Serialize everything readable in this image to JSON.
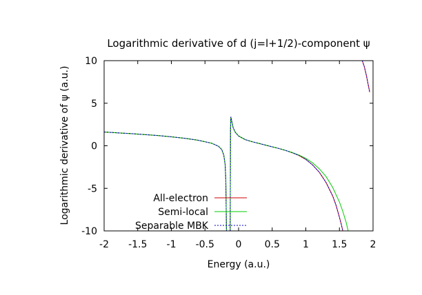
{
  "chart_data": {
    "type": "line",
    "title": "Logarithmic derivative of d (j=l+1/2)-component ψ",
    "xlabel": "Energy (a.u.)",
    "ylabel": "Logarithmic derivative of ψ (a.u.)",
    "xlim": [
      -2,
      2
    ],
    "ylim": [
      -10,
      10
    ],
    "xticks": [
      -2,
      -1.5,
      -1,
      -0.5,
      0,
      0.5,
      1,
      1.5,
      2
    ],
    "yticks": [
      -10,
      -5,
      0,
      5,
      10
    ],
    "xtick_labels": [
      "-2",
      "-1.5",
      "-1",
      "-0.5",
      "0",
      "0.5",
      "1",
      "1.5",
      "2"
    ],
    "ytick_labels": [
      "-10",
      "-5",
      "0",
      "5",
      "10"
    ],
    "grid": false,
    "legend_position": "bottom-left",
    "series": [
      {
        "name": "All-electron",
        "color": "#cc0000",
        "dash": "solid",
        "segments": [
          [
            [
              -2.0,
              1.62
            ],
            [
              -1.8,
              1.52
            ],
            [
              -1.6,
              1.43
            ],
            [
              -1.4,
              1.32
            ],
            [
              -1.2,
              1.2
            ],
            [
              -1.0,
              1.05
            ],
            [
              -0.8,
              0.88
            ],
            [
              -0.6,
              0.65
            ],
            [
              -0.4,
              0.3
            ],
            [
              -0.3,
              -0.05
            ],
            [
              -0.25,
              -0.45
            ],
            [
              -0.22,
              -1.1
            ],
            [
              -0.2,
              -2.2
            ],
            [
              -0.19,
              -4.0
            ],
            [
              -0.18,
              -10.0
            ]
          ],
          [
            [
              -0.125,
              -10.0
            ],
            [
              -0.12,
              2.0
            ],
            [
              -0.115,
              3.4
            ],
            [
              -0.1,
              2.8
            ],
            [
              -0.08,
              2.1
            ],
            [
              -0.05,
              1.6
            ],
            [
              0.0,
              1.15
            ],
            [
              0.1,
              0.72
            ],
            [
              0.2,
              0.48
            ],
            [
              0.3,
              0.28
            ],
            [
              0.4,
              0.08
            ],
            [
              0.5,
              -0.12
            ],
            [
              0.6,
              -0.32
            ],
            [
              0.7,
              -0.55
            ],
            [
              0.8,
              -0.82
            ],
            [
              0.9,
              -1.15
            ],
            [
              1.0,
              -1.6
            ],
            [
              1.1,
              -2.25
            ],
            [
              1.2,
              -3.1
            ],
            [
              1.3,
              -4.3
            ],
            [
              1.4,
              -5.9
            ],
            [
              1.45,
              -7.0
            ],
            [
              1.5,
              -8.4
            ],
            [
              1.53,
              -9.3
            ],
            [
              1.55,
              -10.0
            ]
          ],
          [
            [
              1.84,
              10.0
            ],
            [
              1.87,
              9.3
            ],
            [
              1.9,
              8.3
            ],
            [
              1.95,
              6.3
            ]
          ]
        ]
      },
      {
        "name": "Semi-local",
        "color": "#00cc00",
        "dash": "solid",
        "segments": [
          [
            [
              -2.0,
              1.62
            ],
            [
              -1.8,
              1.52
            ],
            [
              -1.6,
              1.43
            ],
            [
              -1.4,
              1.32
            ],
            [
              -1.2,
              1.2
            ],
            [
              -1.0,
              1.05
            ],
            [
              -0.8,
              0.88
            ],
            [
              -0.6,
              0.65
            ],
            [
              -0.4,
              0.3
            ],
            [
              -0.3,
              -0.05
            ],
            [
              -0.25,
              -0.45
            ],
            [
              -0.22,
              -1.1
            ],
            [
              -0.2,
              -2.2
            ],
            [
              -0.19,
              -4.0
            ],
            [
              -0.18,
              -10.0
            ]
          ],
          [
            [
              -0.125,
              -10.0
            ],
            [
              -0.12,
              2.0
            ],
            [
              -0.115,
              3.4
            ],
            [
              -0.1,
              2.8
            ],
            [
              -0.08,
              2.1
            ],
            [
              -0.05,
              1.6
            ],
            [
              0.0,
              1.15
            ],
            [
              0.1,
              0.72
            ],
            [
              0.2,
              0.48
            ],
            [
              0.3,
              0.28
            ],
            [
              0.4,
              0.08
            ],
            [
              0.5,
              -0.12
            ],
            [
              0.6,
              -0.32
            ],
            [
              0.7,
              -0.55
            ],
            [
              0.8,
              -0.8
            ],
            [
              0.9,
              -1.1
            ],
            [
              1.0,
              -1.48
            ],
            [
              1.1,
              -2.0
            ],
            [
              1.2,
              -2.7
            ],
            [
              1.3,
              -3.6
            ],
            [
              1.4,
              -4.9
            ],
            [
              1.5,
              -6.6
            ],
            [
              1.55,
              -7.7
            ],
            [
              1.6,
              -9.0
            ],
            [
              1.63,
              -10.0
            ]
          ]
        ]
      },
      {
        "name": "Separable MBK",
        "color": "#0000cc",
        "dash": "dotted",
        "segments": [
          [
            [
              -2.0,
              1.62
            ],
            [
              -1.8,
              1.52
            ],
            [
              -1.6,
              1.43
            ],
            [
              -1.4,
              1.32
            ],
            [
              -1.2,
              1.2
            ],
            [
              -1.0,
              1.05
            ],
            [
              -0.8,
              0.88
            ],
            [
              -0.6,
              0.65
            ],
            [
              -0.4,
              0.3
            ],
            [
              -0.3,
              -0.05
            ],
            [
              -0.25,
              -0.45
            ],
            [
              -0.22,
              -1.1
            ],
            [
              -0.2,
              -2.2
            ],
            [
              -0.19,
              -4.0
            ],
            [
              -0.18,
              -10.0
            ]
          ],
          [
            [
              -0.125,
              -10.0
            ],
            [
              -0.12,
              2.0
            ],
            [
              -0.115,
              3.4
            ],
            [
              -0.1,
              2.8
            ],
            [
              -0.08,
              2.1
            ],
            [
              -0.05,
              1.6
            ],
            [
              0.0,
              1.15
            ],
            [
              0.1,
              0.72
            ],
            [
              0.2,
              0.48
            ],
            [
              0.3,
              0.28
            ],
            [
              0.4,
              0.08
            ],
            [
              0.5,
              -0.12
            ],
            [
              0.6,
              -0.32
            ],
            [
              0.7,
              -0.55
            ],
            [
              0.8,
              -0.82
            ],
            [
              0.9,
              -1.15
            ],
            [
              1.0,
              -1.6
            ],
            [
              1.1,
              -2.25
            ],
            [
              1.2,
              -3.1
            ],
            [
              1.3,
              -4.3
            ],
            [
              1.4,
              -5.9
            ],
            [
              1.45,
              -7.0
            ],
            [
              1.5,
              -8.4
            ],
            [
              1.53,
              -9.3
            ],
            [
              1.55,
              -10.0
            ]
          ],
          [
            [
              1.84,
              10.0
            ],
            [
              1.87,
              9.3
            ],
            [
              1.9,
              8.3
            ],
            [
              1.95,
              6.3
            ]
          ]
        ]
      }
    ]
  }
}
